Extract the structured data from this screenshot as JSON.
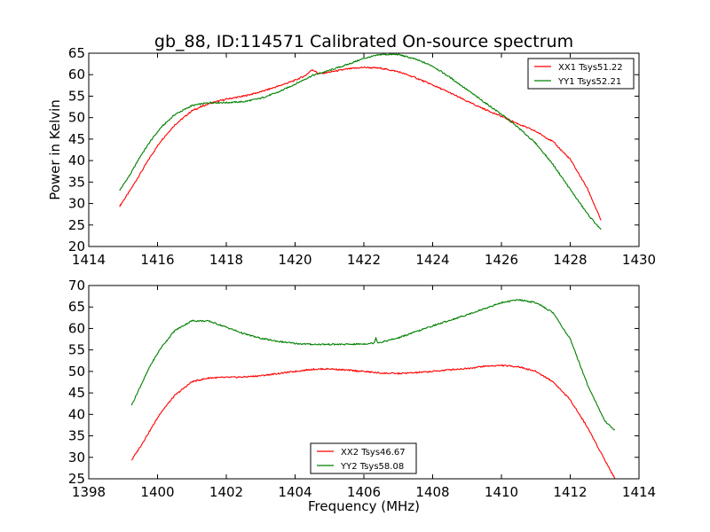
{
  "figure": {
    "title": "gb_88, ID:114571 Calibrated On-source spectrum",
    "shared_ylabel": "Power in Kelvin",
    "shared_xlabel": "Frequency (MHz)"
  },
  "chart_data": [
    {
      "type": "line",
      "title": "gb_88, ID:114571 Calibrated On-source spectrum",
      "ylabel": "Power in Kelvin",
      "xlabel": "",
      "xlim": [
        1414,
        1430
      ],
      "ylim": [
        20,
        65
      ],
      "xticks": [
        1414,
        1416,
        1418,
        1420,
        1422,
        1424,
        1426,
        1428,
        1430
      ],
      "yticks": [
        20,
        25,
        30,
        35,
        40,
        45,
        50,
        55,
        60,
        65
      ],
      "grid": false,
      "legend_position": "upper-right",
      "series": [
        {
          "name": "XX1 Tsys51.22",
          "color": "#ff0000",
          "points": [
            [
              1414.9,
              29.4
            ],
            [
              1415.2,
              33
            ],
            [
              1415.5,
              37
            ],
            [
              1415.8,
              41
            ],
            [
              1416.1,
              44.6
            ],
            [
              1416.5,
              48.3
            ],
            [
              1417.0,
              51.6
            ],
            [
              1417.5,
              53.3
            ],
            [
              1418.0,
              54.3
            ],
            [
              1418.5,
              55
            ],
            [
              1419.0,
              56
            ],
            [
              1419.5,
              57.3
            ],
            [
              1420.0,
              58.7
            ],
            [
              1420.3,
              59.8
            ],
            [
              1420.5,
              61.2
            ],
            [
              1420.7,
              60.2
            ],
            [
              1421.0,
              60.6
            ],
            [
              1421.5,
              61.3
            ],
            [
              1422.0,
              61.7
            ],
            [
              1422.5,
              61.5
            ],
            [
              1423.0,
              60.7
            ],
            [
              1423.5,
              59.3
            ],
            [
              1424.0,
              57.6
            ],
            [
              1424.5,
              55.8
            ],
            [
              1425.0,
              53.8
            ],
            [
              1425.5,
              52
            ],
            [
              1426.0,
              50.3
            ],
            [
              1426.5,
              48.5
            ],
            [
              1427.0,
              46.8
            ],
            [
              1427.5,
              44.4
            ],
            [
              1428.0,
              40.3
            ],
            [
              1428.5,
              33.5
            ],
            [
              1428.9,
              26
            ]
          ]
        },
        {
          "name": "YY1 Tsys52.21",
          "color": "#008000",
          "points": [
            [
              1414.9,
              33.1
            ],
            [
              1415.2,
              36.7
            ],
            [
              1415.5,
              41
            ],
            [
              1415.8,
              44.6
            ],
            [
              1416.1,
              47.7
            ],
            [
              1416.5,
              50.7
            ],
            [
              1417.0,
              52.8
            ],
            [
              1417.5,
              53.5
            ],
            [
              1418.0,
              53.5
            ],
            [
              1418.5,
              53.7
            ],
            [
              1419.0,
              54.5
            ],
            [
              1419.5,
              55.9
            ],
            [
              1420.0,
              57.8
            ],
            [
              1420.5,
              59.8
            ],
            [
              1421.0,
              61
            ],
            [
              1421.5,
              62.3
            ],
            [
              1422.0,
              63.8
            ],
            [
              1422.5,
              64.7
            ],
            [
              1423.0,
              64.7
            ],
            [
              1423.5,
              63.6
            ],
            [
              1424.0,
              62
            ],
            [
              1424.5,
              59.4
            ],
            [
              1425.0,
              56.5
            ],
            [
              1425.5,
              53.6
            ],
            [
              1426.0,
              50.8
            ],
            [
              1426.5,
              47.6
            ],
            [
              1427.0,
              44
            ],
            [
              1427.5,
              39.1
            ],
            [
              1428.0,
              33.3
            ],
            [
              1428.5,
              27.6
            ],
            [
              1428.9,
              23.8
            ]
          ]
        }
      ]
    },
    {
      "type": "line",
      "title": "",
      "ylabel": "",
      "xlabel": "Frequency (MHz)",
      "xlim": [
        1398,
        1414
      ],
      "ylim": [
        25,
        70
      ],
      "xticks": [
        1398,
        1400,
        1402,
        1404,
        1406,
        1408,
        1410,
        1412,
        1414
      ],
      "yticks": [
        25,
        30,
        35,
        40,
        45,
        50,
        55,
        60,
        65,
        70
      ],
      "grid": false,
      "legend_position": "lower-center",
      "series": [
        {
          "name": "XX2 Tsys46.67",
          "color": "#ff0000",
          "points": [
            [
              1399.25,
              29.4
            ],
            [
              1399.5,
              32.5
            ],
            [
              1399.8,
              36.5
            ],
            [
              1400.1,
              40.5
            ],
            [
              1400.5,
              44.4
            ],
            [
              1401.0,
              47.6
            ],
            [
              1401.5,
              48.5
            ],
            [
              1402.0,
              48.6
            ],
            [
              1402.5,
              48.7
            ],
            [
              1403.0,
              49
            ],
            [
              1403.5,
              49.5
            ],
            [
              1404.0,
              50
            ],
            [
              1404.5,
              50.5
            ],
            [
              1405.0,
              50.6
            ],
            [
              1405.5,
              50.3
            ],
            [
              1406.0,
              50
            ],
            [
              1406.5,
              49.6
            ],
            [
              1407.0,
              49.5
            ],
            [
              1407.5,
              49.7
            ],
            [
              1408.0,
              50
            ],
            [
              1408.5,
              50.4
            ],
            [
              1409.0,
              50.7
            ],
            [
              1409.5,
              51.2
            ],
            [
              1410.0,
              51.4
            ],
            [
              1410.5,
              51.1
            ],
            [
              1411.0,
              50
            ],
            [
              1411.5,
              47.6
            ],
            [
              1412.0,
              43.4
            ],
            [
              1412.5,
              37
            ],
            [
              1413.0,
              29.5
            ],
            [
              1413.3,
              25
            ]
          ]
        },
        {
          "name": "YY2 Tsys58.08",
          "color": "#008000",
          "points": [
            [
              1399.25,
              42.2
            ],
            [
              1399.5,
              46.5
            ],
            [
              1399.8,
              51.5
            ],
            [
              1400.1,
              55.5
            ],
            [
              1400.5,
              59.5
            ],
            [
              1401.0,
              61.8
            ],
            [
              1401.5,
              61.7
            ],
            [
              1402.0,
              60.3
            ],
            [
              1402.5,
              58.8
            ],
            [
              1403.0,
              57.7
            ],
            [
              1403.5,
              57
            ],
            [
              1404.0,
              56.5
            ],
            [
              1404.5,
              56.3
            ],
            [
              1405.0,
              56.3
            ],
            [
              1405.5,
              56.3
            ],
            [
              1406.0,
              56.4
            ],
            [
              1406.3,
              56.6
            ],
            [
              1406.35,
              57.9
            ],
            [
              1406.4,
              56.7
            ],
            [
              1406.5,
              56.8
            ],
            [
              1407.0,
              57.8
            ],
            [
              1407.5,
              59.2
            ],
            [
              1408.0,
              60.6
            ],
            [
              1408.5,
              61.9
            ],
            [
              1409.0,
              63.2
            ],
            [
              1409.5,
              64.6
            ],
            [
              1410.0,
              66
            ],
            [
              1410.5,
              66.7
            ],
            [
              1411.0,
              66
            ],
            [
              1411.5,
              63.7
            ],
            [
              1412.0,
              57.5
            ],
            [
              1412.5,
              47
            ],
            [
              1413.0,
              38.5
            ],
            [
              1413.3,
              36.3
            ]
          ]
        }
      ]
    }
  ]
}
